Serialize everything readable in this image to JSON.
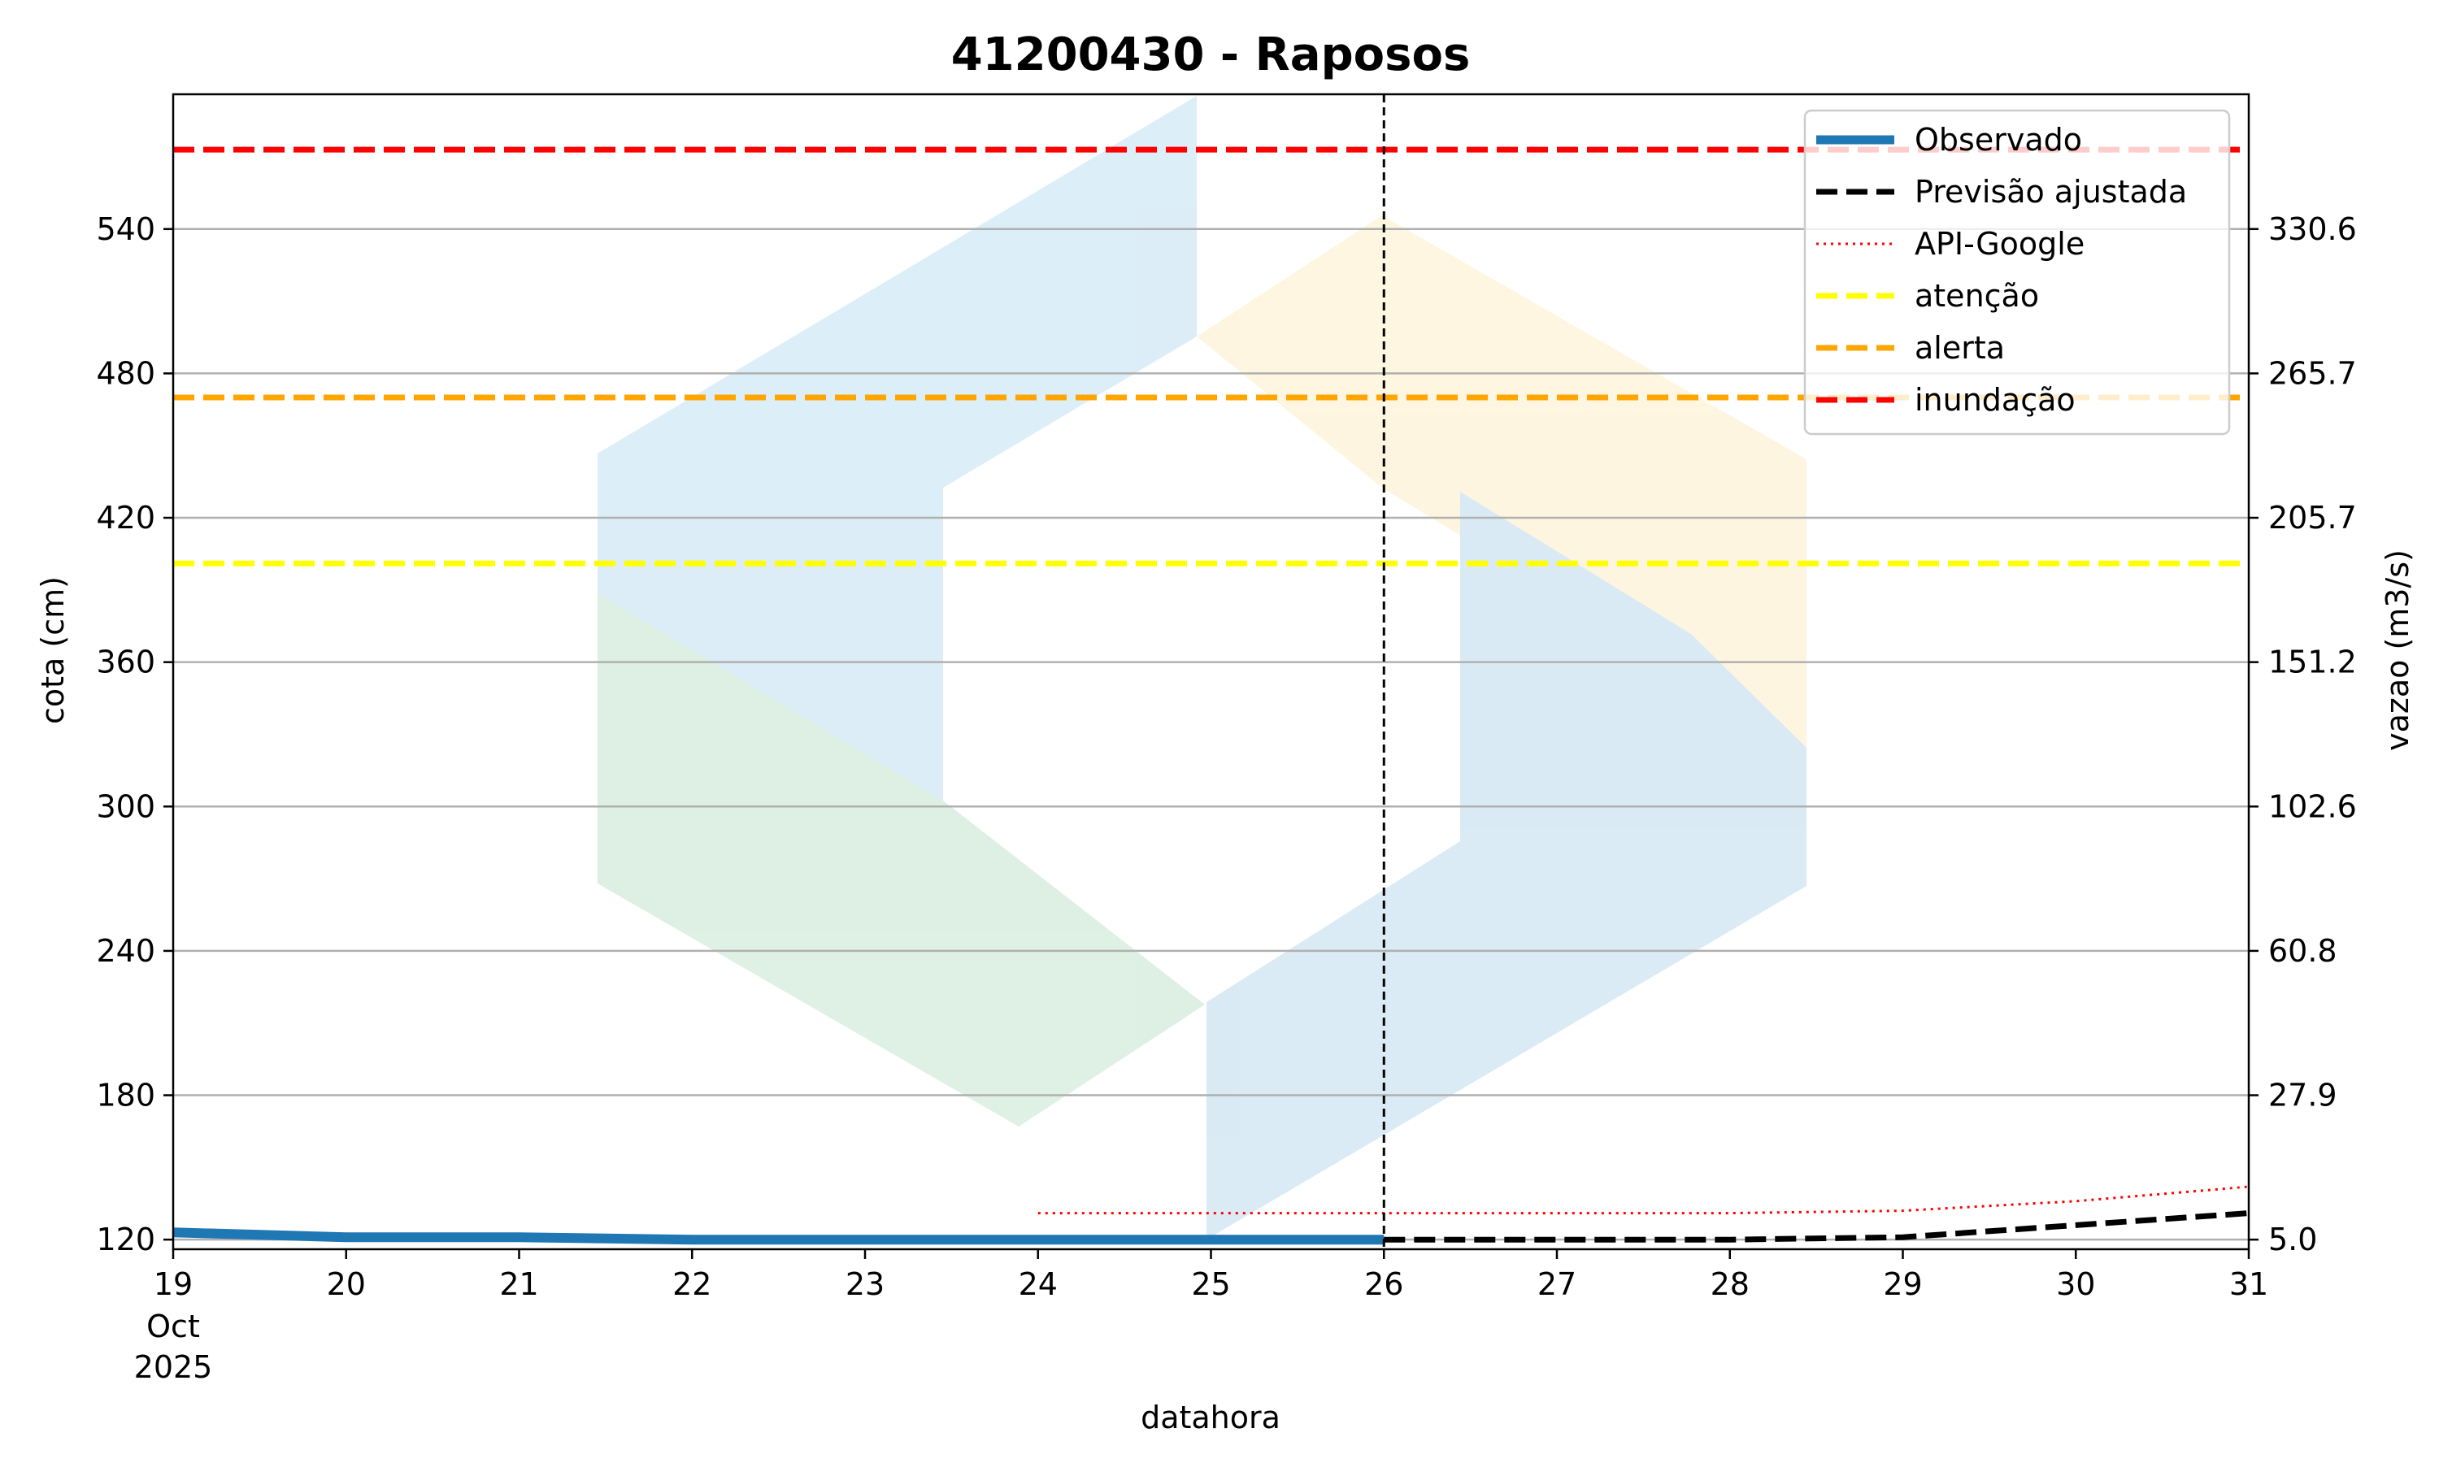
{
  "chart_data": {
    "type": "line",
    "title": "41200430 - Raposos",
    "xlabel": "datahora",
    "ylabel": "cota (cm)",
    "ylabel_right": "vazao (m3/s)",
    "x_ticks": [
      "19",
      "20",
      "21",
      "22",
      "23",
      "24",
      "25",
      "26",
      "27",
      "28",
      "29",
      "30",
      "31"
    ],
    "x_tick_sub": [
      "Oct",
      "2025"
    ],
    "xlim": [
      "2025-10-19",
      "2025-10-31"
    ],
    "ylim": [
      116,
      596
    ],
    "y_ticks": [
      120,
      180,
      240,
      300,
      360,
      420,
      480,
      540
    ],
    "y_ticks_right": [
      "5.0",
      "27.9",
      "60.8",
      "102.6",
      "151.2",
      "205.7",
      "265.7",
      "330.6"
    ],
    "forecast_marker": "2025-10-26",
    "grid": "horizontal",
    "legend_position": "top-right",
    "series": [
      {
        "name": "Observado",
        "style": "solid",
        "color": "#1f77b4",
        "x": [
          "2025-10-19",
          "2025-10-20",
          "2025-10-21",
          "2025-10-22",
          "2025-10-23",
          "2025-10-24",
          "2025-10-25",
          "2025-10-26"
        ],
        "y": [
          123,
          121,
          121,
          120,
          120,
          120,
          120,
          120
        ]
      },
      {
        "name": "Previsão ajustada",
        "style": "dashed",
        "color": "#000000",
        "x": [
          "2025-10-26",
          "2025-10-27",
          "2025-10-28",
          "2025-10-29",
          "2025-10-30",
          "2025-10-31"
        ],
        "y": [
          120,
          120,
          120,
          121,
          126,
          131
        ]
      },
      {
        "name": "API-Google",
        "style": "dotted",
        "color": "#ff0000",
        "x": [
          "2025-10-24",
          "2025-10-25",
          "2025-10-26",
          "2025-10-27",
          "2025-10-28",
          "2025-10-29",
          "2025-10-30",
          "2025-10-31"
        ],
        "y": [
          131,
          131,
          131,
          131,
          131,
          132,
          136,
          142
        ]
      }
    ],
    "thresholds": [
      {
        "name": "atenção",
        "value": 401,
        "color": "#ffff00"
      },
      {
        "name": "alerta",
        "value": 470,
        "color": "#ffa500"
      },
      {
        "name": "inundação",
        "value": 573,
        "color": "#ff0000"
      }
    ]
  }
}
